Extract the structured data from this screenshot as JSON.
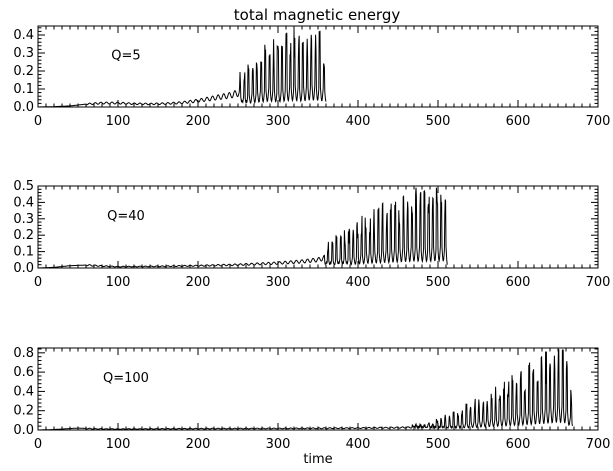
{
  "figure": {
    "title": "total magnetic energy",
    "xlabel": "time"
  },
  "chart_data": [
    {
      "type": "line",
      "label": "Q=5",
      "xlim": [
        0,
        700
      ],
      "ylim": [
        0,
        0.45
      ],
      "xticks": [
        0,
        100,
        200,
        300,
        400,
        500,
        600,
        700
      ],
      "yticks": [
        0.0,
        0.1,
        0.2,
        0.3,
        0.4
      ],
      "ytick_labels": [
        "0.0",
        "0.1",
        "0.2",
        "0.3",
        "0.4"
      ],
      "xlabel": "",
      "series": [
        {
          "x": [
            0,
            20,
            40,
            60,
            80,
            100,
            120,
            140,
            160,
            180,
            200,
            220,
            240,
            260,
            270,
            280,
            290,
            300,
            310,
            320,
            330,
            340,
            350,
            360
          ],
          "y": [
            0,
            0.002,
            0.006,
            0.016,
            0.022,
            0.022,
            0.018,
            0.017,
            0.019,
            0.024,
            0.035,
            0.05,
            0.065,
            0.09,
            0.12,
            0.14,
            0.16,
            0.14,
            0.17,
            0.18,
            0.16,
            0.19,
            0.18,
            0.15
          ]
        }
      ]
    },
    {
      "type": "line",
      "label": "Q=40",
      "xlim": [
        0,
        700
      ],
      "ylim": [
        0,
        0.5
      ],
      "xticks": [
        0,
        100,
        200,
        300,
        400,
        500,
        600,
        700
      ],
      "yticks": [
        0.0,
        0.1,
        0.2,
        0.3,
        0.4,
        0.5
      ],
      "ytick_labels": [
        "0.0",
        "0.1",
        "0.2",
        "0.3",
        "0.4",
        "0.5"
      ],
      "xlabel": "",
      "series": [
        {
          "x": [
            0,
            20,
            40,
            60,
            80,
            100,
            150,
            200,
            250,
            300,
            330,
            350,
            370,
            390,
            410,
            430,
            450,
            470,
            490,
            500,
            510,
            512
          ],
          "y": [
            0,
            0.004,
            0.014,
            0.018,
            0.012,
            0.008,
            0.01,
            0.014,
            0.02,
            0.03,
            0.04,
            0.05,
            0.08,
            0.1,
            0.14,
            0.16,
            0.18,
            0.2,
            0.2,
            0.22,
            0.2,
            0.07
          ]
        }
      ]
    },
    {
      "type": "line",
      "label": "Q=100",
      "xlim": [
        0,
        700
      ],
      "ylim": [
        0,
        0.85
      ],
      "xticks": [
        0,
        100,
        200,
        300,
        400,
        500,
        600,
        700
      ],
      "yticks": [
        0.0,
        0.2,
        0.4,
        0.6,
        0.8
      ],
      "ytick_labels": [
        "0.0",
        "0.2",
        "0.4",
        "0.6",
        "0.8"
      ],
      "xlabel": "time",
      "series": [
        {
          "x": [
            0,
            20,
            40,
            50,
            70,
            100,
            150,
            200,
            300,
            400,
            450,
            490,
            500,
            520,
            540,
            560,
            580,
            600,
            620,
            640,
            650,
            660,
            668
          ],
          "y": [
            0,
            0.005,
            0.015,
            0.02,
            0.012,
            0.01,
            0.012,
            0.014,
            0.016,
            0.02,
            0.025,
            0.03,
            0.05,
            0.08,
            0.12,
            0.16,
            0.2,
            0.25,
            0.3,
            0.35,
            0.4,
            0.35,
            0.12
          ]
        }
      ]
    }
  ]
}
